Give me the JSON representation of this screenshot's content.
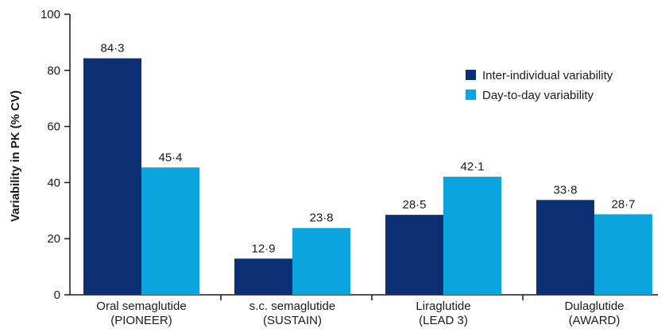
{
  "chart_data": {
    "type": "bar",
    "ylabel": "Variability in PK (% CV)",
    "ylim": [
      0,
      100
    ],
    "yticks": [
      0,
      20,
      40,
      60,
      80,
      100
    ],
    "categories": [
      [
        "Oral semaglutide",
        "(PIONEER)"
      ],
      [
        "s.c. semaglutide",
        "(SUSTAIN)"
      ],
      [
        "Liraglutide",
        "(LEAD 3)"
      ],
      [
        "Dulaglutide",
        "(AWARD)"
      ]
    ],
    "series": [
      {
        "name": "Inter-individual variability",
        "color": "#0d2f73",
        "values": [
          84.3,
          12.9,
          28.5,
          33.8
        ],
        "labels": [
          "84·3",
          "12·9",
          "28·5",
          "33·8"
        ]
      },
      {
        "name": "Day-to-day variability",
        "color": "#0ba4de",
        "values": [
          45.4,
          23.8,
          42.1,
          28.7
        ],
        "labels": [
          "45·4",
          "23·8",
          "42·1",
          "28·7"
        ]
      }
    ],
    "legend_position": "top-right",
    "grid": false
  }
}
